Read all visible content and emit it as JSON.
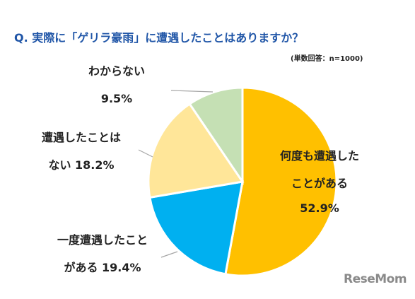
{
  "title": "Q. 実際に「ゲリラ豪雨」に遭遇したことはありますか？",
  "note": "(単数回答：n=1000)",
  "logo_text": "ReseMom",
  "chart_data": {
    "type": "pie",
    "title": "Q. 実際に「ゲリラ豪雨」に遭遇したことはありますか？",
    "slices": [
      {
        "label_lines": [
          "何度も遭遇した",
          "ことがある"
        ],
        "value": 52.9,
        "value_label": "52.9%",
        "color": "#ffc000"
      },
      {
        "label_lines": [
          "一度遭遇したこと",
          "がある 19.4%"
        ],
        "value": 19.4,
        "value_label": "",
        "color": "#00b0f0"
      },
      {
        "label_lines": [
          "遭遇したことは",
          "ない 18.2%"
        ],
        "value": 18.2,
        "value_label": "",
        "color": "#ffe699"
      },
      {
        "label_lines": [
          "わからない",
          "9.5%"
        ],
        "value": 9.5,
        "value_label": "",
        "color": "#c5e0b4"
      }
    ],
    "legend": "none",
    "start": "12 o'clock",
    "direction": "clockwise"
  }
}
